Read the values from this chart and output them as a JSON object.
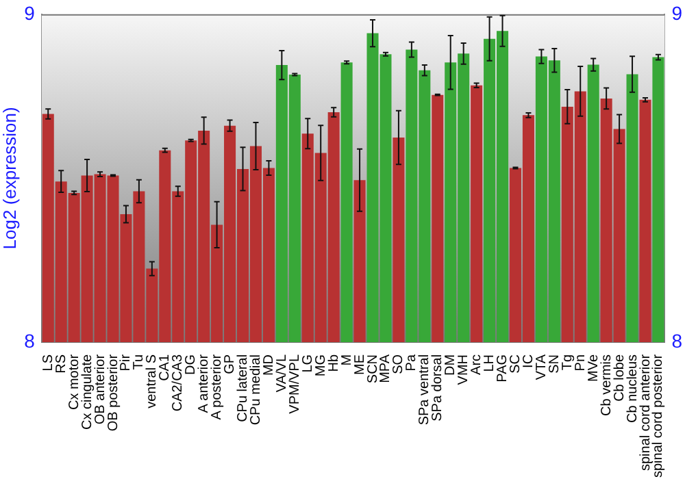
{
  "chart_data": {
    "type": "bar",
    "ylabel": "Log2 (expression)",
    "categories": [
      "LS",
      "RS",
      "Cx motor",
      "Cx cingulate",
      "OB anterior",
      "OB posterior",
      "Pir",
      "Tu",
      "ventral S",
      "CA1",
      "CA2/CA3",
      "DG",
      "A anterior",
      "A posterior",
      "GP",
      "CPu lateral",
      "CPu medial",
      "MD",
      "VA/VL",
      "VPM/VPL",
      "LG",
      "MG",
      "Hb",
      "M",
      "ME",
      "SCN",
      "MPA",
      "SO",
      "Pa",
      "SPa ventral",
      "SPa dorsal",
      "DM",
      "VMH",
      "Arc",
      "LH",
      "PAG",
      "SC",
      "IC",
      "VTA",
      "SN",
      "Tg",
      "Pn",
      "MVe",
      "Cb vermis",
      "Cb lobe",
      "Cb nucleus",
      "spinal cord anterior",
      "spinal cord posterior"
    ],
    "values": [
      8.696,
      8.49,
      8.455,
      8.508,
      8.512,
      8.508,
      8.39,
      8.46,
      8.224,
      8.585,
      8.46,
      8.615,
      8.645,
      8.358,
      8.66,
      8.528,
      8.598,
      8.531,
      8.845,
      8.816,
      8.636,
      8.577,
      8.701,
      8.853,
      8.494,
      8.942,
      8.878,
      8.624,
      8.892,
      8.829,
      8.754,
      8.853,
      8.88,
      8.783,
      8.925,
      8.949,
      8.531,
      8.692,
      8.871,
      8.859,
      8.718,
      8.765,
      8.846,
      8.743,
      8.65,
      8.817,
      8.739,
      8.869
    ],
    "errors": [
      0.015,
      0.033,
      0.005,
      0.049,
      0.007,
      0.002,
      0.026,
      0.035,
      0.021,
      0.006,
      0.015,
      0.003,
      0.041,
      0.07,
      0.017,
      0.066,
      0.072,
      0.022,
      0.044,
      0.003,
      0.046,
      0.084,
      0.014,
      0.004,
      0.095,
      0.041,
      0.005,
      0.082,
      0.023,
      0.016,
      0.002,
      0.082,
      0.032,
      0.007,
      0.067,
      0.047,
      0.002,
      0.007,
      0.021,
      0.036,
      0.052,
      0.076,
      0.019,
      0.032,
      0.044,
      0.055,
      0.006,
      0.008
    ],
    "colors": [
      "#b83232",
      "#b83232",
      "#b83232",
      "#b83232",
      "#b83232",
      "#b83232",
      "#b83232",
      "#b83232",
      "#b83232",
      "#b83232",
      "#b83232",
      "#b83232",
      "#b83232",
      "#b83232",
      "#b83232",
      "#b83232",
      "#b83232",
      "#b83232",
      "#38a838",
      "#38a838",
      "#b83232",
      "#b83232",
      "#b83232",
      "#38a838",
      "#b83232",
      "#38a838",
      "#38a838",
      "#b83232",
      "#38a838",
      "#38a838",
      "#b83232",
      "#38a838",
      "#38a838",
      "#b83232",
      "#38a838",
      "#38a838",
      "#b83232",
      "#b83232",
      "#38a838",
      "#38a838",
      "#b83232",
      "#b83232",
      "#38a838",
      "#b83232",
      "#b83232",
      "#38a838",
      "#b83232",
      "#38a838"
    ],
    "ylim": [
      8,
      9
    ],
    "yticks": [
      8,
      9
    ],
    "y2lim": [
      8,
      9
    ],
    "y2ticks": [
      8,
      9
    ],
    "grid": false,
    "legend": false
  }
}
